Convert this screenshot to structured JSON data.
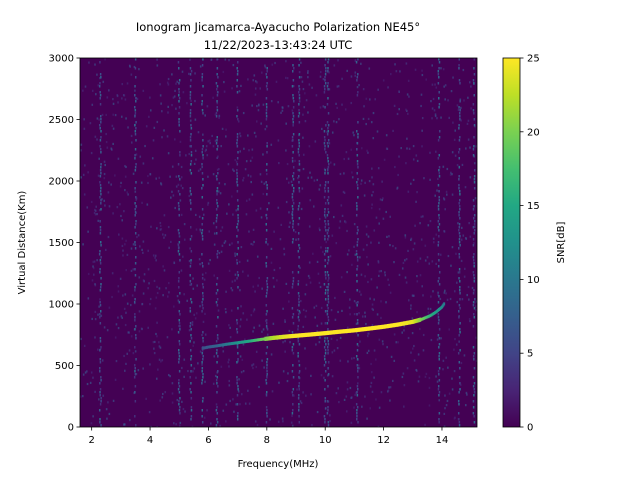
{
  "chart_data": {
    "type": "heatmap",
    "title": "Ionogram Jicamarca-Ayacucho Polarization NE45°",
    "subtitle": "11/22/2023-13:43:24 UTC",
    "xlabel": "Frequency(MHz)",
    "ylabel": "Virtual Distance(Km)",
    "xlim": [
      1.6,
      15.2
    ],
    "ylim": [
      0,
      3000
    ],
    "x_ticks": [
      2,
      4,
      6,
      8,
      10,
      12,
      14
    ],
    "y_ticks": [
      0,
      500,
      1000,
      1500,
      2000,
      2500,
      3000
    ],
    "colorbar": {
      "label": "SNR[dB]",
      "range": [
        0,
        25
      ],
      "ticks": [
        0,
        5,
        10,
        15,
        20,
        25
      ],
      "colormap": "viridis"
    },
    "background_snr_db": 1,
    "trace": {
      "points": [
        [
          5.8,
          640,
          6
        ],
        [
          6.0,
          650,
          7
        ],
        [
          6.3,
          660,
          8
        ],
        [
          6.6,
          672,
          10
        ],
        [
          7.0,
          685,
          13
        ],
        [
          7.4,
          698,
          15
        ],
        [
          7.8,
          712,
          19
        ],
        [
          8.2,
          724,
          22
        ],
        [
          8.6,
          734,
          24
        ],
        [
          9.0,
          742,
          25
        ],
        [
          9.5,
          752,
          25
        ],
        [
          10.0,
          763,
          25
        ],
        [
          10.5,
          775,
          25
        ],
        [
          11.0,
          786,
          25
        ],
        [
          11.5,
          800,
          25
        ],
        [
          12.0,
          815,
          25
        ],
        [
          12.5,
          833,
          25
        ],
        [
          13.0,
          855,
          24
        ],
        [
          13.3,
          875,
          20
        ],
        [
          13.6,
          905,
          16
        ],
        [
          13.8,
          935,
          14
        ],
        [
          14.0,
          975,
          12
        ],
        [
          14.1,
          1010,
          10
        ]
      ]
    },
    "vertical_interference_mhz": [
      2.3,
      3.5,
      5.0,
      5.4,
      5.8,
      6.3,
      7.0,
      8.0,
      8.9,
      9.1,
      10.0,
      10.1,
      11.1,
      13.9,
      14.6,
      15.1
    ]
  }
}
